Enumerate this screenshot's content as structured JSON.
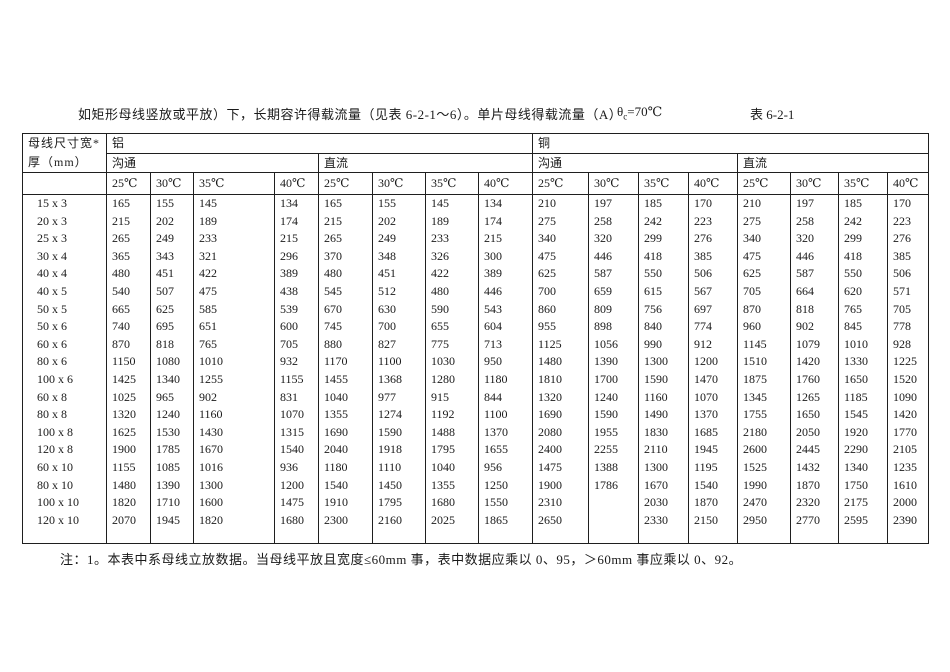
{
  "title": {
    "main": "如矩形母线竖放或平放）下，长期容许得载流量（见表 6-2-1～6）。单片母线得载流量（A）",
    "theta_symbol": "θ",
    "theta_sub": "c",
    "theta_rest": "=70℃",
    "table_ref": "表 6-2-1"
  },
  "table": {
    "corner_line1": "母线尺寸宽*",
    "corner_line2": "厚（mm）",
    "groups": {
      "aluminum": "铝",
      "copper": "铜"
    },
    "subgroups": [
      "沟通",
      "直流",
      "沟通",
      "直流"
    ],
    "temps": [
      "25℃",
      "30℃",
      "35℃",
      "40℃"
    ],
    "rows": [
      {
        "size": "15 x 3",
        "values": [
          "165",
          "155",
          "145",
          "134",
          "165",
          "155",
          "145",
          "134",
          "210",
          "197",
          "185",
          "170",
          "210",
          "197",
          "185",
          "170"
        ]
      },
      {
        "size": "20 x 3",
        "values": [
          "215",
          "202",
          "189",
          "174",
          "215",
          "202",
          "189",
          "174",
          "275",
          "258",
          "242",
          "223",
          "275",
          "258",
          "242",
          "223"
        ]
      },
      {
        "size": "25 x 3",
        "values": [
          "265",
          "249",
          "233",
          "215",
          "265",
          "249",
          "233",
          "215",
          "340",
          "320",
          "299",
          "276",
          "340",
          "320",
          "299",
          "276"
        ]
      },
      {
        "size": "30 x 4",
        "values": [
          "365",
          "343",
          "321",
          "296",
          "370",
          "348",
          "326",
          "300",
          "475",
          "446",
          "418",
          "385",
          "475",
          "446",
          "418",
          "385"
        ]
      },
      {
        "size": "40 x 4",
        "values": [
          "480",
          "451",
          "422",
          "389",
          "480",
          "451",
          "422",
          "389",
          "625",
          "587",
          "550",
          "506",
          "625",
          "587",
          "550",
          "506"
        ]
      },
      {
        "size": "40 x 5",
        "values": [
          "540",
          "507",
          "475",
          "438",
          "545",
          "512",
          "480",
          "446",
          "700",
          "659",
          "615",
          "567",
          "705",
          "664",
          "620",
          "571"
        ]
      },
      {
        "size": "50 x 5",
        "values": [
          "665",
          "625",
          "585",
          "539",
          "670",
          "630",
          "590",
          "543",
          "860",
          "809",
          "756",
          "697",
          "870",
          "818",
          "765",
          "705"
        ]
      },
      {
        "size": "50 x 6",
        "values": [
          "740",
          "695",
          "651",
          "600",
          "745",
          "700",
          "655",
          "604",
          "955",
          "898",
          "840",
          "774",
          "960",
          "902",
          "845",
          "778"
        ]
      },
      {
        "size": "60 x 6",
        "values": [
          "870",
          "818",
          "765",
          "705",
          "880",
          "827",
          "775",
          "713",
          "1125",
          "1056",
          "990",
          "912",
          "1145",
          "1079",
          "1010",
          "928"
        ]
      },
      {
        "size": "80 x 6",
        "values": [
          "1150",
          "1080",
          "1010",
          "932",
          "1170",
          "1100",
          "1030",
          "950",
          "1480",
          "1390",
          "1300",
          "1200",
          "1510",
          "1420",
          "1330",
          "1225"
        ]
      },
      {
        "size": "100 x 6",
        "values": [
          "1425",
          "1340",
          "1255",
          "1155",
          "1455",
          "1368",
          "1280",
          "1180",
          "1810",
          "1700",
          "1590",
          "1470",
          "1875",
          "1760",
          "1650",
          "1520"
        ]
      },
      {
        "size": "60 x 8",
        "values": [
          "1025",
          "965",
          "902",
          "831",
          "1040",
          "977",
          "915",
          "844",
          "1320",
          "1240",
          "1160",
          "1070",
          "1345",
          "1265",
          "1185",
          "1090"
        ]
      },
      {
        "size": "80 x 8",
        "values": [
          "1320",
          "1240",
          "1160",
          "1070",
          "1355",
          "1274",
          "1192",
          "1100",
          "1690",
          "1590",
          "1490",
          "1370",
          "1755",
          "1650",
          "1545",
          "1420"
        ]
      },
      {
        "size": "100 x 8",
        "values": [
          "1625",
          "1530",
          "1430",
          "1315",
          "1690",
          "1590",
          "1488",
          "1370",
          "2080",
          "1955",
          "1830",
          "1685",
          "2180",
          "2050",
          "1920",
          "1770"
        ]
      },
      {
        "size": "120 x 8",
        "values": [
          "1900",
          "1785",
          "1670",
          "1540",
          "2040",
          "1918",
          "1795",
          "1655",
          "2400",
          "2255",
          "2110",
          "1945",
          "2600",
          "2445",
          "2290",
          "2105"
        ]
      },
      {
        "size": "60 x 10",
        "values": [
          "1155",
          "1085",
          "1016",
          "936",
          "1180",
          "1110",
          "1040",
          "956",
          "1475",
          "1388",
          "1300",
          "1195",
          "1525",
          "1432",
          "1340",
          "1235"
        ]
      },
      {
        "size": "80 x 10",
        "values": [
          "1480",
          "1390",
          "1300",
          "1200",
          "1540",
          "1450",
          "1355",
          "1250",
          "1900",
          "1786",
          "1670",
          "1540",
          "1990",
          "1870",
          "1750",
          "1610"
        ]
      },
      {
        "size": "100 x 10",
        "values": [
          "1820",
          "1710",
          "1600",
          "1475",
          "1910",
          "1795",
          "1680",
          "1550",
          "2310",
          "",
          "2030",
          "1870",
          "2470",
          "2320",
          "2175",
          "2000"
        ]
      },
      {
        "size": "120 x 10",
        "values": [
          "2070",
          "1945",
          "1820",
          "1680",
          "2300",
          "2160",
          "2025",
          "1865",
          "2650",
          "",
          "2330",
          "2150",
          "2950",
          "2770",
          "2595",
          "2390"
        ]
      }
    ]
  },
  "note": "注：1。本表中系母线立放数据。当母线平放且宽度≤60mm 事，表中数据应乘以 0、95，＞60mm 事应乘以 0、92。"
}
